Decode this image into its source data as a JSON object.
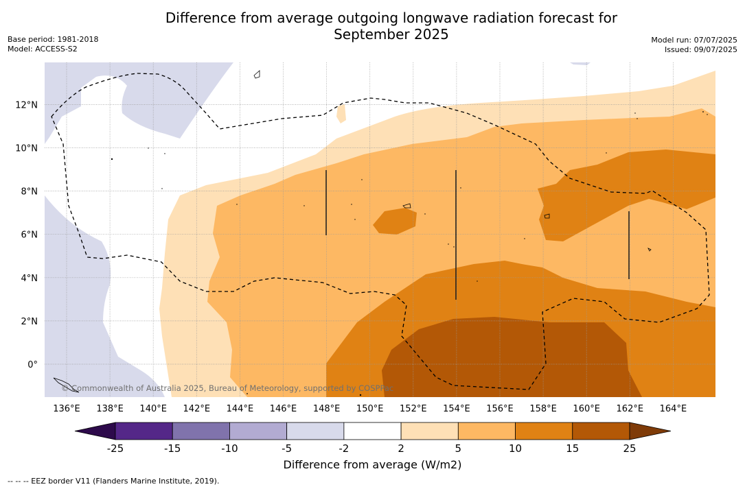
{
  "title_line1": "Difference from average outgoing longwave radiation forecast for",
  "title_line2": "September 2025",
  "base_period": "Base period: 1981-2018",
  "model": "Model: ACCESS-S2",
  "model_run": "Model run: 07/07/2025",
  "issued": "Issued: 09/07/2025",
  "copyright": "© Commonwealth of Australia 2025, Bureau of Meteorology, supported by COSPPac",
  "footer_note": "-- -- -- EEZ border V11 (Flanders Marine Institute, 2019).",
  "map": {
    "lon_labels": [
      "136°E",
      "138°E",
      "140°E",
      "142°E",
      "144°E",
      "146°E",
      "148°E",
      "150°E",
      "152°E",
      "154°E",
      "156°E",
      "158°E",
      "160°E",
      "162°E",
      "164°E"
    ],
    "lat_labels": [
      "12°N",
      "10°N",
      "8°N",
      "6°N",
      "4°N",
      "2°N",
      "0°"
    ]
  },
  "colorbar": {
    "label": "Difference from average (W/m2)",
    "ticks": [
      "-25",
      "-15",
      "-10",
      "-5",
      "-2",
      "2",
      "5",
      "10",
      "15",
      "25"
    ],
    "colors": {
      "under": "#2d0a4b",
      "bins": [
        "#542788",
        "#8073ac",
        "#b2abd2",
        "#d8daeb",
        "#ffffff",
        "#fee0b6",
        "#fdb863",
        "#e08214",
        "#b35806"
      ],
      "over": "#7f3b08"
    }
  }
}
